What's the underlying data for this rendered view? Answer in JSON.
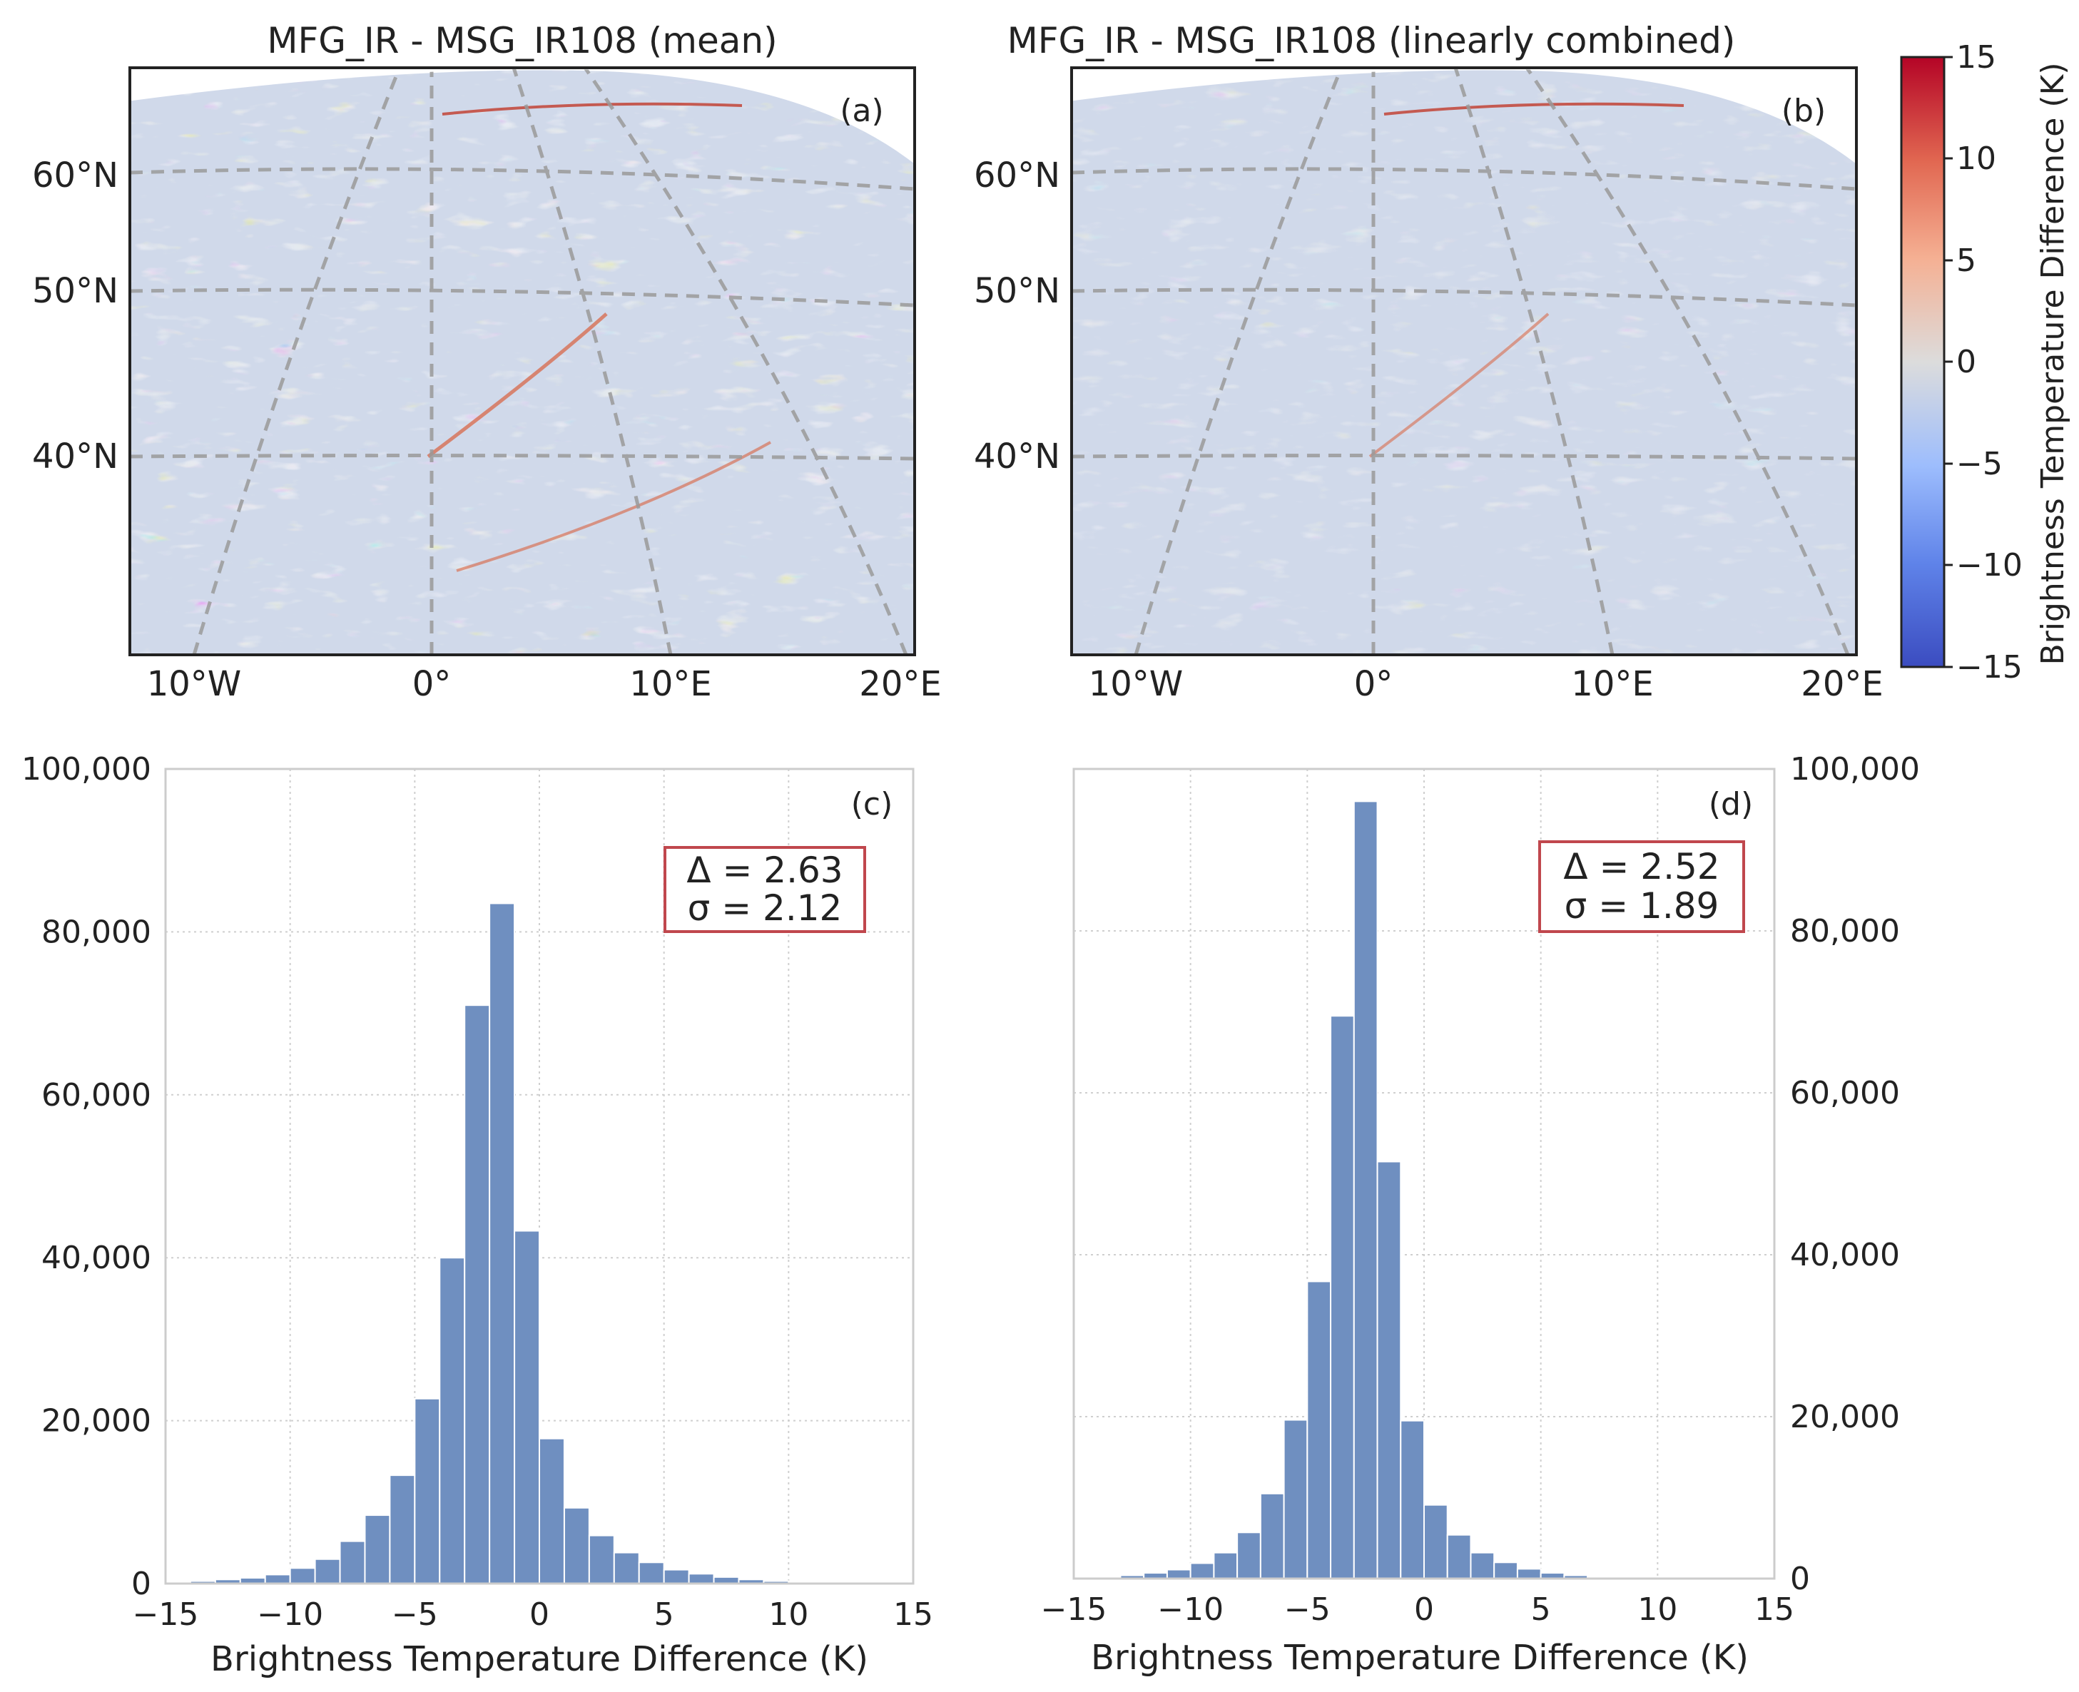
{
  "maps": [
    {
      "title": "MFG_IR - MSG_IR108 (mean)",
      "panel_label": "(a)",
      "lat_labels": [
        "60°N",
        "50°N",
        "40°N"
      ],
      "lon_labels": [
        "10°W",
        "0°",
        "10°E",
        "20°E"
      ]
    },
    {
      "title": "MFG_IR - MSG_IR108 (linearly combined)",
      "panel_label": "(b)",
      "lat_labels": [
        "60°N",
        "50°N",
        "40°N"
      ],
      "lon_labels": [
        "10°W",
        "0°",
        "10°E",
        "20°E"
      ]
    }
  ],
  "colorbar": {
    "label": "Brightness Temperature Difference (K)",
    "ticks": [
      "15",
      "10",
      "5",
      "0",
      "−5",
      "−10",
      "−15"
    ],
    "range": [
      -15,
      15
    ],
    "colors": {
      "low": "#3a4cc0",
      "mid": "#dddcdc",
      "high": "#b40426"
    }
  },
  "bar_color": "#6f8fc0",
  "stat_box_color": "#c0474d",
  "chart_data": [
    {
      "type": "bar",
      "panel_label": "(c)",
      "xlabel": "Brightness Temperature Difference (K)",
      "ylabel": "",
      "xlim": [
        -15,
        15
      ],
      "ylim": [
        0,
        100000
      ],
      "x_ticks": [
        "−15",
        "−10",
        "−5",
        "0",
        "5",
        "10",
        "15"
      ],
      "y_ticks": [
        "0",
        "20,000",
        "40,000",
        "60,000",
        "80,000",
        "100,000"
      ],
      "bin_start": -15,
      "bin_width": 1,
      "values": [
        0,
        300,
        500,
        700,
        1100,
        1900,
        3000,
        5200,
        8400,
        13300,
        22700,
        40000,
        71000,
        83500,
        43300,
        17800,
        9300,
        5900,
        3800,
        2600,
        1700,
        1200,
        800,
        500,
        300,
        200,
        100,
        50,
        0,
        0
      ],
      "stats": {
        "delta": "Δ = 2.63",
        "sigma": "σ = 2.12"
      }
    },
    {
      "type": "bar",
      "panel_label": "(d)",
      "xlabel": "Brightness Temperature Difference (K)",
      "ylabel": "",
      "xlim": [
        -15,
        15
      ],
      "ylim": [
        0,
        100000
      ],
      "x_ticks": [
        "−15",
        "−10",
        "−5",
        "0",
        "5",
        "10",
        "15"
      ],
      "y_ticks": [
        "0",
        "20,000",
        "40,000",
        "60,000",
        "80,000",
        "100,000"
      ],
      "bin_start": -15,
      "bin_width": 1,
      "values": [
        0,
        200,
        400,
        700,
        1100,
        1900,
        3200,
        5700,
        10500,
        19600,
        36700,
        69500,
        96000,
        51500,
        19500,
        9100,
        5400,
        3200,
        2000,
        1200,
        700,
        400,
        200,
        100,
        50,
        0,
        0,
        0,
        0,
        0
      ],
      "stats": {
        "delta": "Δ = 2.52",
        "sigma": "σ = 1.89"
      }
    }
  ]
}
